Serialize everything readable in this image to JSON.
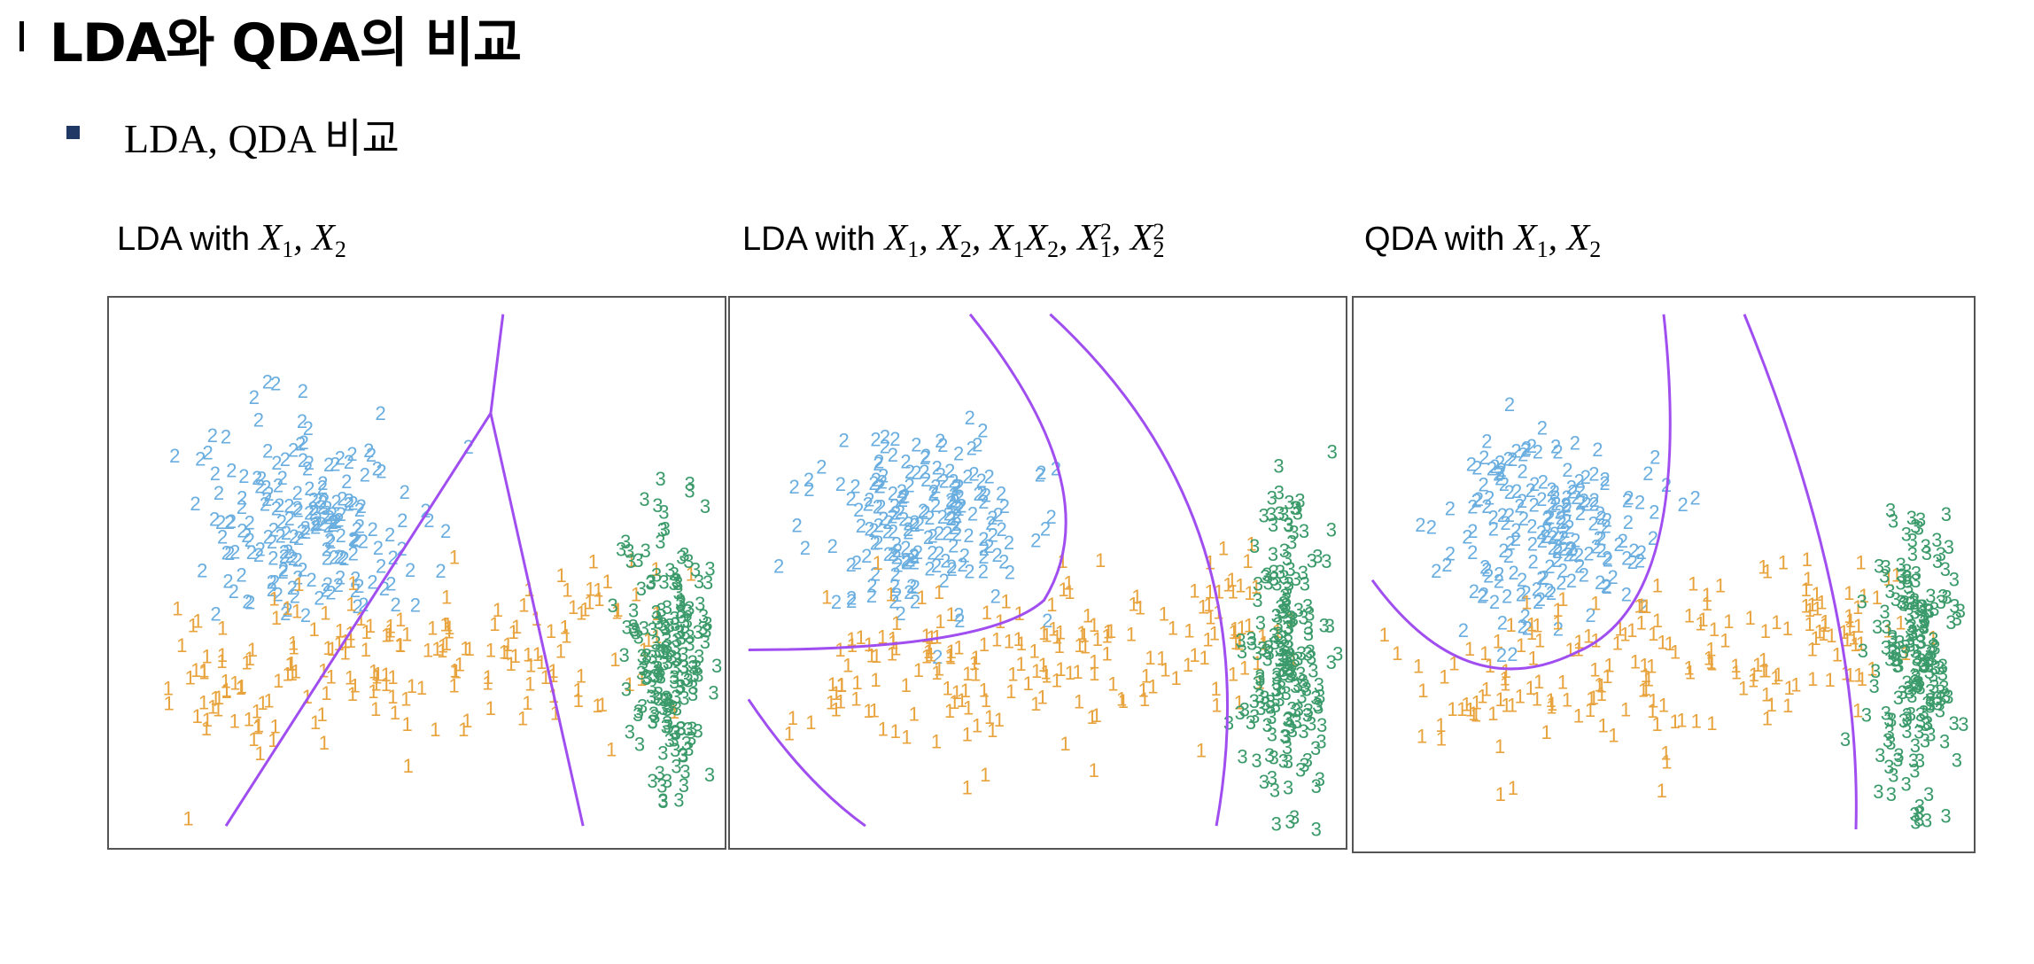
{
  "slide": {
    "title": "LDA와 QDA의 비교",
    "bullet": "LDA, QDA 비교"
  },
  "panels": [
    {
      "prefix": "LDA with ",
      "math_parts": [
        "X",
        "1",
        ", X",
        "2"
      ]
    },
    {
      "prefix": "LDA with ",
      "math_parts": [
        "X",
        "1",
        ", X",
        "2",
        ", X",
        "1",
        "X",
        "2",
        ", X",
        "1",
        "2",
        ", X",
        "2",
        "2"
      ]
    },
    {
      "prefix": "QDA with ",
      "math_parts": [
        "X",
        "1",
        ", X",
        "2"
      ]
    }
  ],
  "colors": {
    "class1": "#e8a33d",
    "class2": "#6aaee0",
    "class3": "#3a9a6a",
    "boundary": "#a04ef0"
  },
  "chart_data": [
    {
      "type": "scatter",
      "title": "LDA with X1, X2",
      "classes": [
        "1",
        "2",
        "3"
      ],
      "class_centers": {
        "1": [
          0.55,
          0.28
        ],
        "2": [
          0.3,
          0.65
        ],
        "3": [
          0.88,
          0.45
        ]
      },
      "class_counts": {
        "1": 200,
        "2": 200,
        "3": 200
      },
      "point_labels_shown": [
        "1",
        "2",
        "3"
      ],
      "decision_boundary": "linear (two lines meeting at a junction)",
      "xlim": [
        0,
        1
      ],
      "ylim": [
        0,
        1
      ],
      "grid": false
    },
    {
      "type": "scatter",
      "title": "LDA with X1, X2, X1X2, X1^2, X2^2",
      "classes": [
        "1",
        "2",
        "3"
      ],
      "decision_boundary": "quadratic curves",
      "xlim": [
        0,
        1
      ],
      "ylim": [
        0,
        1
      ],
      "grid": false
    },
    {
      "type": "scatter",
      "title": "QDA with X1, X2",
      "classes": [
        "1",
        "2",
        "3"
      ],
      "decision_boundary": "quadratic curves",
      "xlim": [
        0,
        1
      ],
      "ylim": [
        0,
        1
      ],
      "grid": false
    }
  ]
}
